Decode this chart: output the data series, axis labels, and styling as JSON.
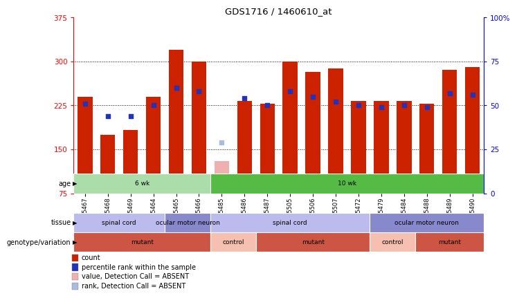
{
  "title": "GDS1716 / 1460610_at",
  "samples": [
    "GSM75467",
    "GSM75468",
    "GSM75469",
    "GSM75464",
    "GSM75465",
    "GSM75466",
    "GSM75485",
    "GSM75486",
    "GSM75487",
    "GSM75505",
    "GSM75506",
    "GSM75507",
    "GSM75472",
    "GSM75479",
    "GSM75484",
    "GSM75488",
    "GSM75489",
    "GSM75490"
  ],
  "bar_values": [
    240,
    175,
    183,
    240,
    320,
    300,
    130,
    232,
    228,
    300,
    282,
    288,
    232,
    232,
    232,
    228,
    285,
    290
  ],
  "bar_absent": [
    false,
    false,
    false,
    false,
    false,
    false,
    true,
    false,
    false,
    false,
    false,
    false,
    false,
    false,
    false,
    false,
    false,
    false
  ],
  "percentile_values": [
    51,
    44,
    44,
    50,
    60,
    58,
    29,
    54,
    50,
    58,
    55,
    52,
    50,
    49,
    50,
    49,
    57,
    56
  ],
  "percentile_absent": [
    false,
    false,
    false,
    false,
    false,
    false,
    true,
    false,
    false,
    false,
    false,
    false,
    false,
    false,
    false,
    false,
    false,
    false
  ],
  "ylim": [
    75,
    375
  ],
  "ylim_right": [
    0,
    100
  ],
  "left_ticks": [
    75,
    150,
    225,
    300,
    375
  ],
  "right_ticks": [
    0,
    25,
    50,
    75,
    100
  ],
  "bar_color_normal": "#cc2200",
  "bar_color_absent": "#f0b0b0",
  "dot_color_normal": "#2233bb",
  "dot_color_absent": "#aabbdd",
  "age_groups": [
    {
      "label": "6 wk",
      "start": 0,
      "end": 6,
      "color": "#aaddaa"
    },
    {
      "label": "10 wk",
      "start": 6,
      "end": 18,
      "color": "#55bb44"
    }
  ],
  "tissue_groups": [
    {
      "label": "spinal cord",
      "start": 0,
      "end": 4,
      "color": "#bbbbee"
    },
    {
      "label": "ocular motor neuron",
      "start": 4,
      "end": 6,
      "color": "#8888cc"
    },
    {
      "label": "spinal cord",
      "start": 6,
      "end": 13,
      "color": "#bbbbee"
    },
    {
      "label": "ocular motor neuron",
      "start": 13,
      "end": 18,
      "color": "#8888cc"
    }
  ],
  "genotype_groups": [
    {
      "label": "mutant",
      "start": 0,
      "end": 6,
      "color": "#cc5544"
    },
    {
      "label": "control",
      "start": 6,
      "end": 8,
      "color": "#f5c0b0"
    },
    {
      "label": "mutant",
      "start": 8,
      "end": 13,
      "color": "#cc5544"
    },
    {
      "label": "control",
      "start": 13,
      "end": 15,
      "color": "#f5c0b0"
    },
    {
      "label": "mutant",
      "start": 15,
      "end": 18,
      "color": "#cc5544"
    }
  ],
  "row_labels": [
    "age",
    "tissue",
    "genotype/variation"
  ],
  "legend_items": [
    {
      "color": "#cc2200",
      "label": "count"
    },
    {
      "color": "#2233bb",
      "label": "percentile rank within the sample"
    },
    {
      "color": "#f0b0b0",
      "label": "value, Detection Call = ABSENT"
    },
    {
      "color": "#aabbdd",
      "label": "rank, Detection Call = ABSENT"
    }
  ],
  "grid_lines": [
    150,
    225,
    300
  ],
  "left_axis_color": "red",
  "right_axis_color": "blue"
}
